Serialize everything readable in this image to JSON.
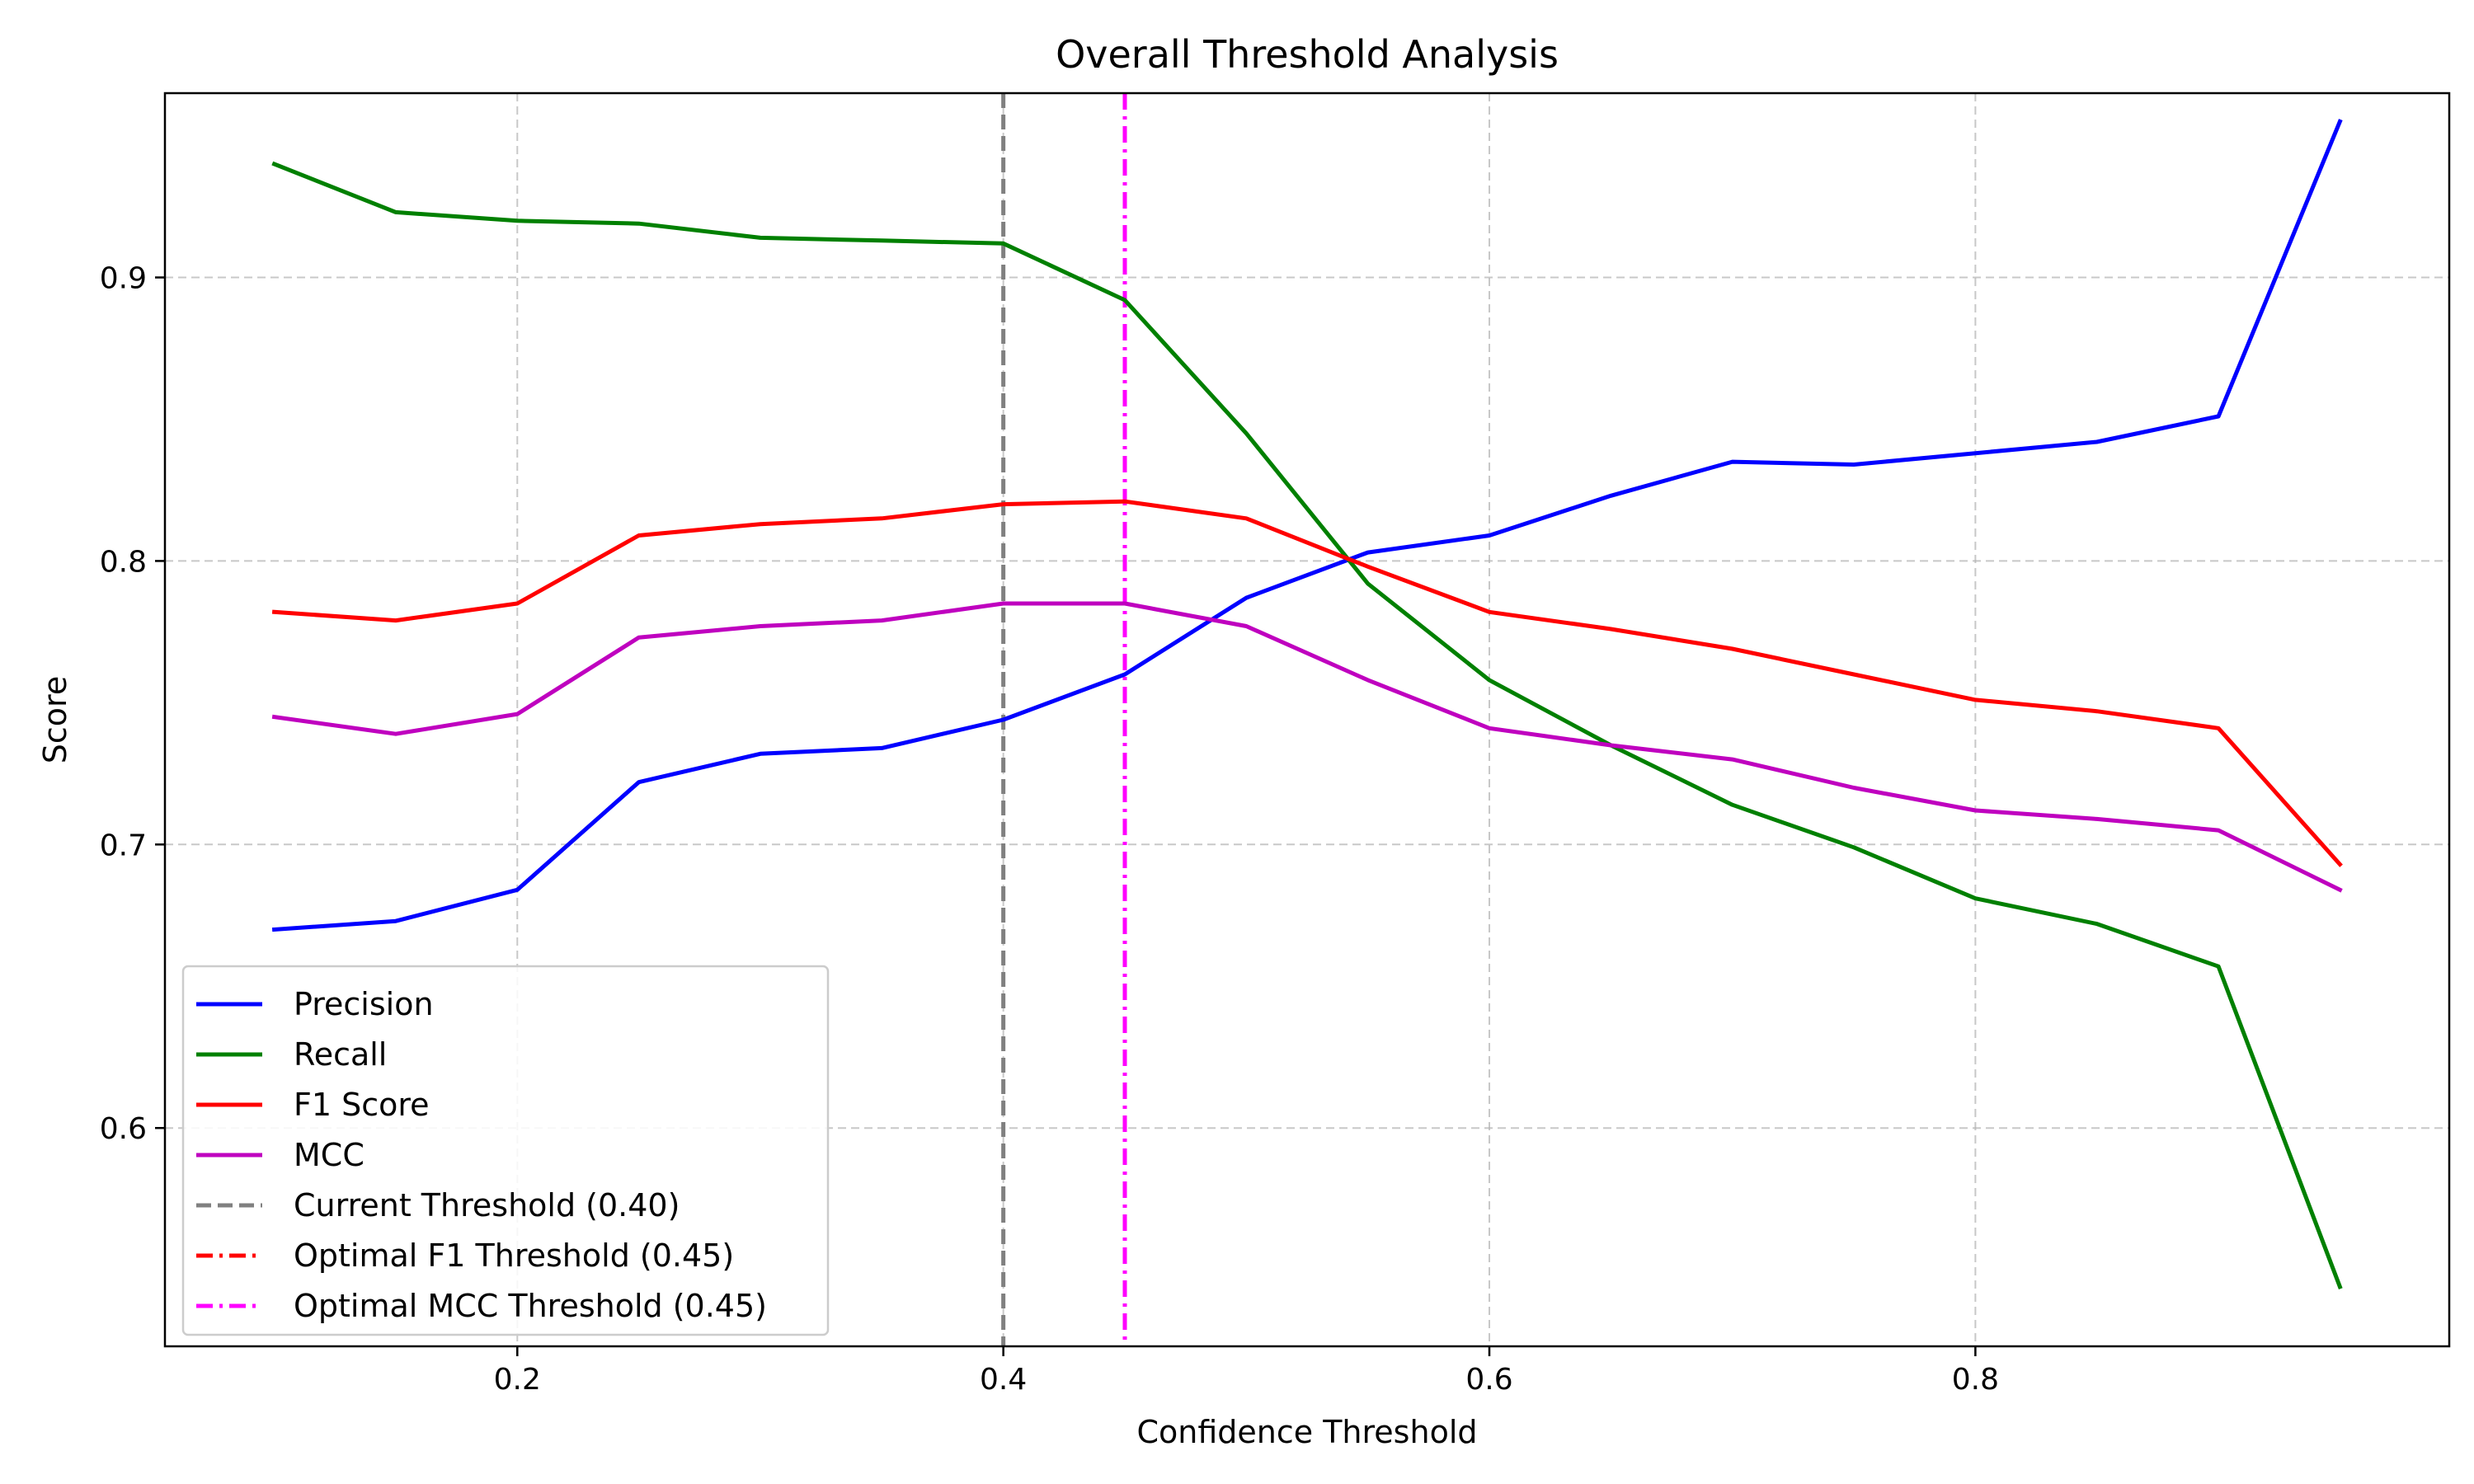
{
  "chart_data": {
    "type": "line",
    "title": "Overall Threshold Analysis",
    "xlabel": "Confidence Threshold",
    "ylabel": "Score",
    "xlim": [
      0.055,
      0.995
    ],
    "ylim": [
      0.523,
      0.965
    ],
    "xticks": [
      0.2,
      0.4,
      0.6,
      0.8
    ],
    "yticks": [
      0.6,
      0.7,
      0.8,
      0.9
    ],
    "xtick_labels": [
      "0.2",
      "0.4",
      "0.6",
      "0.8"
    ],
    "ytick_labels": [
      "0.6",
      "0.7",
      "0.8",
      "0.9"
    ],
    "grid": true,
    "legend_position": "lower-left",
    "x": [
      0.1,
      0.15,
      0.2,
      0.25,
      0.3,
      0.35,
      0.4,
      0.45,
      0.5,
      0.55,
      0.6,
      0.65,
      0.7,
      0.75,
      0.8,
      0.85,
      0.9,
      0.95
    ],
    "series": [
      {
        "name": "Precision",
        "color": "#0000ff",
        "values": [
          0.67,
          0.673,
          0.684,
          0.722,
          0.732,
          0.734,
          0.744,
          0.76,
          0.787,
          0.803,
          0.809,
          0.823,
          0.835,
          0.834,
          0.838,
          0.842,
          0.851,
          0.955
        ]
      },
      {
        "name": "Recall",
        "color": "#008000",
        "values": [
          0.94,
          0.923,
          0.92,
          0.919,
          0.914,
          0.913,
          0.912,
          0.892,
          0.845,
          0.792,
          0.758,
          0.735,
          0.714,
          0.699,
          0.681,
          0.672,
          0.657,
          0.544
        ]
      },
      {
        "name": "F1 Score",
        "color": "#ff0000",
        "values": [
          0.782,
          0.779,
          0.785,
          0.809,
          0.813,
          0.815,
          0.82,
          0.821,
          0.815,
          0.798,
          0.782,
          0.776,
          0.769,
          0.76,
          0.751,
          0.747,
          0.741,
          0.693
        ]
      },
      {
        "name": "MCC",
        "color": "#bf00bf",
        "values": [
          0.745,
          0.739,
          0.746,
          0.773,
          0.777,
          0.779,
          0.785,
          0.785,
          0.777,
          0.758,
          0.741,
          0.735,
          0.73,
          0.72,
          0.712,
          0.709,
          0.705,
          0.684
        ]
      }
    ],
    "threshold_lines": [
      {
        "name": "Current Threshold (0.40)",
        "x": 0.4,
        "color": "#808080",
        "style": "dashed"
      },
      {
        "name": "Optimal F1 Threshold (0.45)",
        "x": 0.45,
        "color": "#ff0000",
        "style": "dashdot"
      },
      {
        "name": "Optimal MCC Threshold (0.45)",
        "x": 0.45,
        "color": "#ff00ff",
        "style": "dashdot"
      }
    ]
  }
}
